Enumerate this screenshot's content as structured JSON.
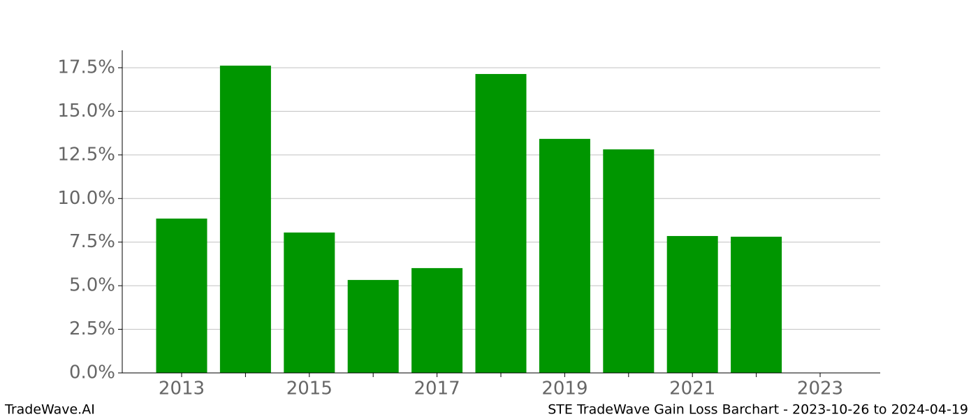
{
  "chart_data": {
    "type": "bar",
    "categories": [
      "2013",
      null,
      "2015",
      null,
      "2017",
      null,
      "2019",
      null,
      "2021",
      null,
      "2023"
    ],
    "values": [
      8.85,
      17.62,
      8.05,
      5.33,
      6.01,
      17.14,
      13.42,
      12.82,
      7.85,
      7.81,
      null
    ],
    "color": "#009600",
    "ylim": [
      0,
      18.5
    ],
    "yticks": [
      {
        "value": 0,
        "label": "0.0%"
      },
      {
        "value": 2.5,
        "label": "2.5%"
      },
      {
        "value": 5,
        "label": "5.0%"
      },
      {
        "value": 7.5,
        "label": "7.5%"
      },
      {
        "value": 10,
        "label": "10.0%"
      },
      {
        "value": 12.5,
        "label": "12.5%"
      },
      {
        "value": 15,
        "label": "15.0%"
      },
      {
        "value": 17.5,
        "label": "17.5%"
      }
    ],
    "grid": true,
    "footer_left": "TradeWave.AI",
    "footer_right": "STE TradeWave Gain Loss Barchart - 2023-10-26 to 2024-04-19"
  }
}
